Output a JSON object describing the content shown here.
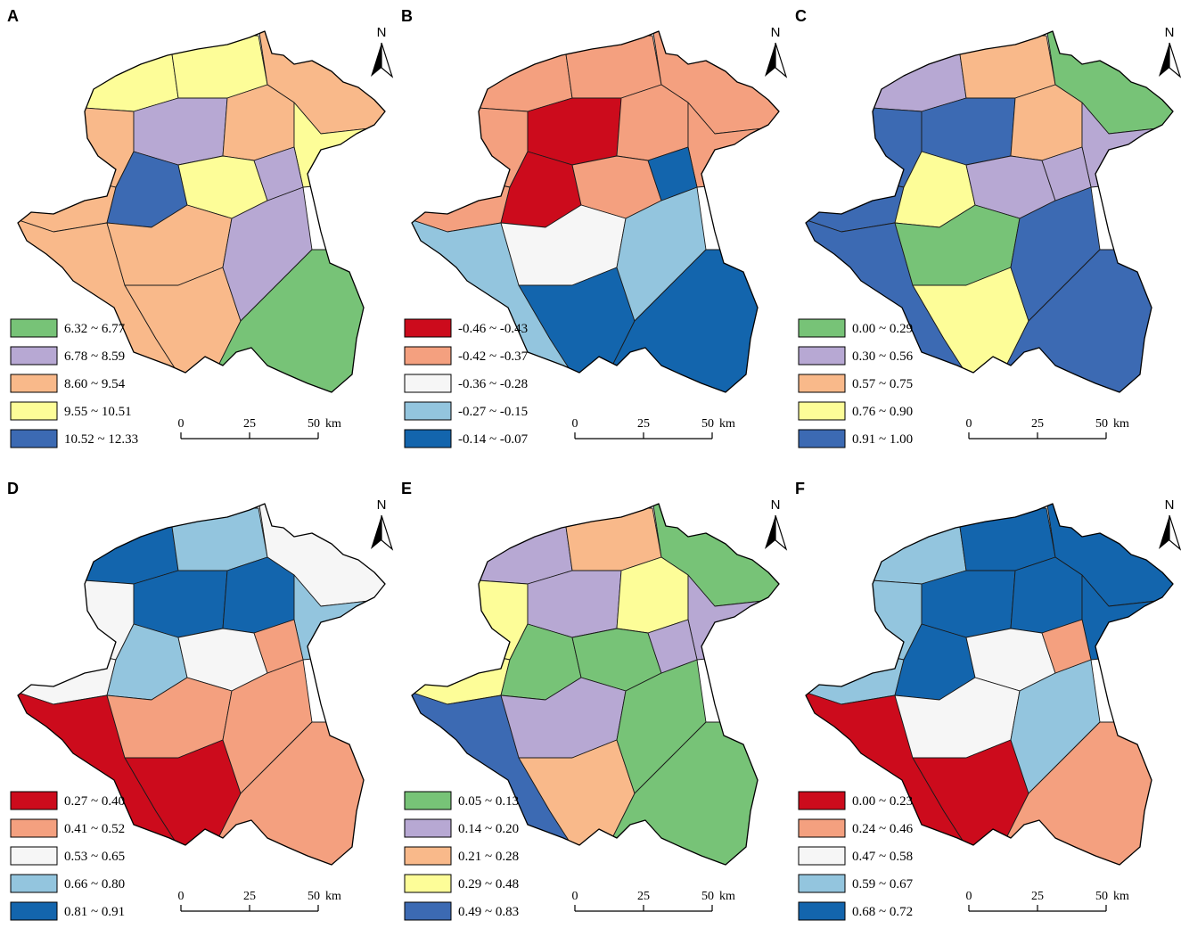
{
  "scale_bar": {
    "ticks": [
      "0",
      "25",
      "50"
    ],
    "unit": "km"
  },
  "north_label": "N",
  "panels": [
    {
      "letter": "A",
      "colors": [
        "#77c377",
        "#b7a8d3",
        "#f9b98a",
        "#fdfd98",
        "#3c6ab3"
      ],
      "legend": [
        "6.32 ~ 6.77",
        "6.78 ~ 8.59",
        "8.60 ~ 9.54",
        "9.55 ~ 10.51",
        "10.52 ~ 12.33"
      ],
      "zones": [
        3,
        3,
        2,
        2,
        1,
        2,
        3,
        2,
        4,
        3,
        2,
        2,
        2,
        1,
        1,
        0
      ]
    },
    {
      "letter": "B",
      "colors": [
        "#cc0b1c",
        "#f4a07f",
        "#f6f6f6",
        "#93c5de",
        "#1365ad"
      ],
      "legend": [
        "-0.46 ~ -0.43",
        "-0.42 ~ -0.37",
        "-0.36 ~ -0.28",
        "-0.27 ~ -0.15",
        "-0.14 ~ -0.07"
      ],
      "zones": [
        1,
        1,
        1,
        1,
        0,
        1,
        1,
        1,
        0,
        1,
        3,
        2,
        4,
        3,
        4,
        4
      ]
    },
    {
      "letter": "C",
      "colors": [
        "#77c377",
        "#b7a8d3",
        "#f9b98a",
        "#fdfd98",
        "#3c6ab3"
      ],
      "legend": [
        "0.00 ~ 0.29",
        "0.30 ~ 0.56",
        "0.57 ~ 0.75",
        "0.76 ~ 0.90",
        "0.91 ~ 1.00"
      ],
      "zones": [
        1,
        2,
        0,
        4,
        4,
        2,
        1,
        4,
        3,
        1,
        4,
        0,
        3,
        4,
        1,
        4
      ]
    },
    {
      "letter": "D",
      "colors": [
        "#cc0b1c",
        "#f4a07f",
        "#f6f6f6",
        "#93c5de",
        "#1365ad"
      ],
      "legend": [
        "0.27 ~ 0.40",
        "0.41 ~ 0.52",
        "0.53 ~ 0.65",
        "0.66 ~ 0.80",
        "0.81 ~ 0.91"
      ],
      "zones": [
        4,
        3,
        2,
        2,
        4,
        4,
        3,
        2,
        3,
        2,
        0,
        1,
        0,
        1,
        1,
        1
      ]
    },
    {
      "letter": "E",
      "colors": [
        "#77c377",
        "#b7a8d3",
        "#f9b98a",
        "#fdfd98",
        "#3c6ab3"
      ],
      "legend": [
        "0.05 ~ 0.13",
        "0.14 ~ 0.20",
        "0.21 ~ 0.28",
        "0.29 ~ 0.48",
        "0.49 ~ 0.83"
      ],
      "zones": [
        1,
        2,
        0,
        3,
        1,
        3,
        1,
        3,
        0,
        0,
        4,
        1,
        2,
        0,
        1,
        0
      ]
    },
    {
      "letter": "F",
      "colors": [
        "#cc0b1c",
        "#f4a07f",
        "#f6f6f6",
        "#93c5de",
        "#1365ad"
      ],
      "legend": [
        "0.00 ~ 0.23",
        "0.24 ~ 0.46",
        "0.47 ~ 0.58",
        "0.59 ~ 0.67",
        "0.68 ~ 0.72"
      ],
      "zones": [
        3,
        4,
        4,
        3,
        4,
        4,
        4,
        3,
        4,
        2,
        0,
        2,
        0,
        3,
        1,
        1
      ]
    }
  ]
}
